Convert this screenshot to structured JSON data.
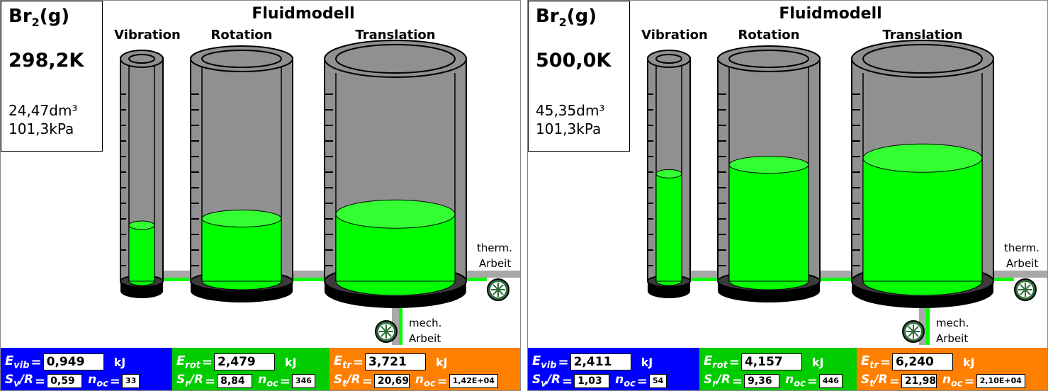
{
  "panels": [
    {
      "species_base": "Br",
      "species_sub": "2",
      "species_phase": "(g)",
      "temperature": "298,2K",
      "volume": "24,47dm³",
      "pressure": "101,3kPa",
      "title": "Fluidmodell",
      "labels": {
        "vibration": "Vibration",
        "rotation": "Rotation",
        "translation": "Translation"
      },
      "therm_work": [
        "therm.",
        "Arbeit"
      ],
      "mech_work": [
        "mech.",
        "Arbeit"
      ],
      "fill_levels": {
        "vibration": 0.25,
        "rotation": 0.28,
        "translation": 0.3
      },
      "readouts": {
        "vib": {
          "sym": "E",
          "sub": "vib",
          "energy": "0,949",
          "unit": "kJ",
          "s_sym": "S",
          "s_sub": "v",
          "s_over": "/R",
          "entropy": "0,59",
          "n_sym": "n",
          "n_sub": "oc",
          "n": "33"
        },
        "rot": {
          "sym": "E",
          "sub": "rot",
          "energy": "2,479",
          "unit": "kJ",
          "s_sym": "S",
          "s_sub": "r",
          "s_over": "/R",
          "entropy": "8,84",
          "n_sym": "n",
          "n_sub": "oc",
          "n": "346"
        },
        "tr": {
          "sym": "E",
          "sub": "tr",
          "energy": "3,721",
          "unit": "kJ",
          "s_sym": "S",
          "s_sub": "t",
          "s_over": "/R",
          "entropy": "20,69",
          "n_sym": "n",
          "n_sub": "oc",
          "n": "1,42E+04"
        }
      }
    },
    {
      "species_base": "Br",
      "species_sub": "2",
      "species_phase": "(g)",
      "temperature": "500,0K",
      "volume": "45,35dm³",
      "pressure": "101,3kPa",
      "title": "Fluidmodell",
      "labels": {
        "vibration": "Vibration",
        "rotation": "Rotation",
        "translation": "Translation"
      },
      "therm_work": [
        "therm.",
        "Arbeit"
      ],
      "mech_work": [
        "mech.",
        "Arbeit"
      ],
      "fill_levels": {
        "vibration": 0.48,
        "rotation": 0.52,
        "translation": 0.55
      },
      "readouts": {
        "vib": {
          "sym": "E",
          "sub": "vib",
          "energy": "2,411",
          "unit": "kJ",
          "s_sym": "S",
          "s_sub": "v",
          "s_over": "/R",
          "entropy": "1,03",
          "n_sym": "n",
          "n_sub": "oc",
          "n": "54"
        },
        "rot": {
          "sym": "E",
          "sub": "rot",
          "energy": "4,157",
          "unit": "kJ",
          "s_sym": "S",
          "s_sub": "r",
          "s_over": "/R",
          "entropy": "9,36",
          "n_sym": "n",
          "n_sub": "oc",
          "n": "446"
        },
        "tr": {
          "sym": "E",
          "sub": "tr",
          "energy": "6,240",
          "unit": "kJ",
          "s_sym": "S",
          "s_sub": "t",
          "s_over": "/R",
          "entropy": "21,98",
          "n_sym": "n",
          "n_sub": "oc",
          "n": "2,10E+04"
        }
      }
    }
  ],
  "colors": {
    "fluid": "#00ff00",
    "fluid_top": "#33ff33",
    "cylinder": "#909090",
    "cylinder_dark": "#3c3c3c",
    "vib_bar": "#0000ff",
    "rot_bar": "#00cc00",
    "tr_bar": "#ff7f00"
  },
  "icons": {
    "valve": "valve-wheel-icon"
  }
}
